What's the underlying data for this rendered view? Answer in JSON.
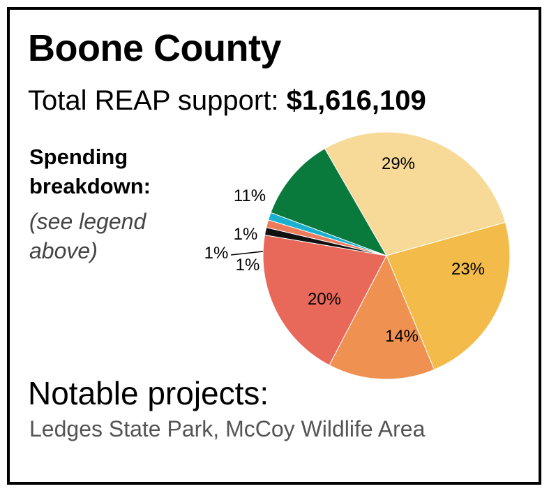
{
  "county": {
    "title": "Boone County"
  },
  "total": {
    "label": "Total REAP support:",
    "value": "$1,616,109"
  },
  "breakdown": {
    "label_line1": "Spending",
    "label_line2": "breakdown:",
    "note_line1": "(see legend",
    "note_line2": "above)"
  },
  "projects": {
    "heading": "Notable projects:",
    "list": "Ledges State Park, McCoy Wildlife Area"
  },
  "chart_data": {
    "type": "pie",
    "title": "",
    "slices": [
      {
        "label": "29%",
        "value": 29,
        "color": "#f7da98"
      },
      {
        "label": "23%",
        "value": 23,
        "color": "#f3bb4a"
      },
      {
        "label": "14%",
        "value": 14,
        "color": "#ef9150"
      },
      {
        "label": "20%",
        "value": 20,
        "color": "#e8685a"
      },
      {
        "label": "1%",
        "value": 1,
        "color": "#111111"
      },
      {
        "label": "1%",
        "value": 1,
        "color": "#ee7a5c"
      },
      {
        "label": "1%",
        "value": 1,
        "color": "#1ab0d0"
      },
      {
        "label": "11%",
        "value": 11,
        "color": "#097a3c"
      }
    ]
  }
}
